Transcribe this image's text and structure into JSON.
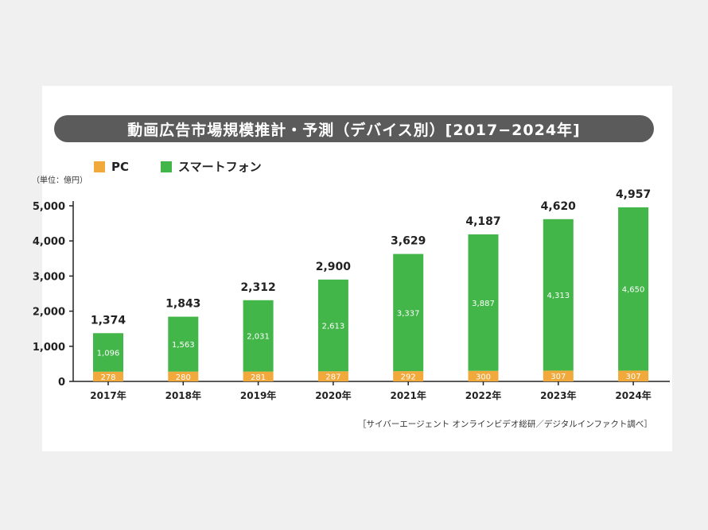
{
  "title": "動画広告市場規模推計・予測（デバイス別）[2017−2024年]",
  "unit_label": "（単位：億円）",
  "source": "［サイバーエージェント オンラインビデオ総研／デジタルインファクト調べ］",
  "colors": {
    "pc": "#f0a93a",
    "smartphone": "#43b649",
    "title_bg": "#5b5b5b"
  },
  "chart_data": {
    "type": "bar",
    "stacked": true,
    "categories": [
      "2017年",
      "2018年",
      "2019年",
      "2020年",
      "2021年",
      "2022年",
      "2023年",
      "2024年"
    ],
    "series": [
      {
        "name": "PC",
        "values": [
          278,
          280,
          281,
          287,
          292,
          300,
          307,
          307
        ]
      },
      {
        "name": "スマートフォン",
        "values": [
          1096,
          1563,
          2031,
          2613,
          3337,
          3887,
          4313,
          4650
        ]
      }
    ],
    "totals": [
      "1,374",
      "1,843",
      "2,312",
      "2,900",
      "3,629",
      "4,187",
      "4,620",
      "4,957"
    ],
    "segment_labels": {
      "PC": [
        "278",
        "280",
        "281",
        "287",
        "292",
        "300",
        "307",
        "307"
      ],
      "スマートフォン": [
        "1,096",
        "1,563",
        "2,031",
        "2,613",
        "3,337",
        "3,887",
        "4,313",
        "4,650"
      ]
    },
    "yticks": [
      "0",
      "1,000",
      "2,000",
      "3,000",
      "4,000",
      "5,000"
    ],
    "ylim": [
      0,
      5000
    ],
    "legend_position": "top-left",
    "grid": false
  }
}
